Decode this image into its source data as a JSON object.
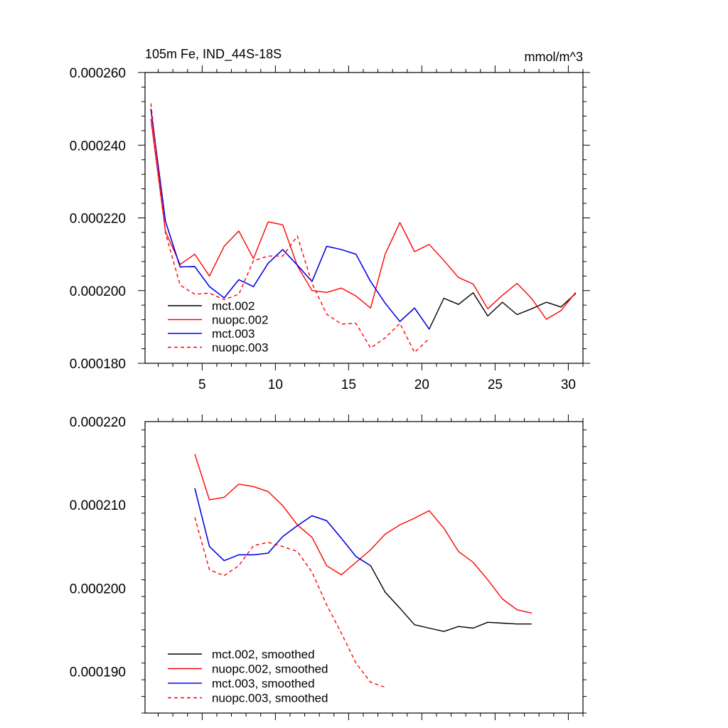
{
  "chart_data": [
    {
      "type": "line",
      "title_left": "105m Fe, IND_44S-18S",
      "title_right": "mmol/m^3",
      "xlabel": "",
      "ylabel": "",
      "xlim": [
        1.1,
        31.0
      ],
      "ylim": [
        0.00018,
        0.00026
      ],
      "xticks": [
        5,
        10,
        15,
        20,
        25,
        30
      ],
      "xtick_labels": [
        "5",
        "10",
        "15",
        "20",
        "25",
        "30"
      ],
      "yticks": [
        0.00018,
        0.0002,
        0.00022,
        0.00024,
        0.00026
      ],
      "ytick_labels": [
        "0.000180",
        "0.000200",
        "0.000220",
        "0.000240",
        "0.000260"
      ],
      "legend_position": "bottom-left",
      "series": [
        {
          "name": "mct.002",
          "color": "#000000",
          "dash": "solid",
          "x": [
            1.5,
            2.5,
            3.5,
            4.5,
            5.5,
            6.5,
            7.5,
            8.5,
            9.5,
            10.5,
            11.5,
            12.5,
            13.5,
            14.5,
            15.5,
            16.5,
            17.5,
            18.5,
            19.5,
            20.5,
            21.5,
            22.5,
            23.5,
            24.5,
            25.5,
            26.5,
            27.5,
            28.5,
            29.5,
            30.5
          ],
          "y": [
            0.00025,
            0.000219,
            0.0002065,
            0.0002066,
            0.0002011,
            0.000198,
            0.000203,
            0.0002011,
            0.0002075,
            0.0002113,
            0.000207,
            0.0002025,
            0.0002122,
            0.0002113,
            0.00021,
            0.0002025,
            0.0001965,
            0.0001915,
            0.0001952,
            0.0001894,
            0.0001979,
            0.0001962,
            0.0001994,
            0.000193,
            0.0001968,
            0.0001934,
            0.000195,
            0.0001968,
            0.0001955,
            0.0001992
          ]
        },
        {
          "name": "nuopc.002",
          "color": "#ff0000",
          "dash": "solid",
          "x": [
            1.5,
            2.5,
            3.5,
            4.5,
            5.5,
            6.5,
            7.5,
            8.5,
            9.5,
            10.5,
            11.5,
            12.5,
            13.5,
            14.5,
            15.5,
            16.5,
            17.5,
            18.5,
            19.5,
            20.5,
            21.5,
            22.5,
            23.5,
            24.5,
            25.5,
            26.5,
            27.5,
            28.5,
            29.5,
            30.5
          ],
          "y": [
            0.0002472,
            0.0002162,
            0.0002072,
            0.00021,
            0.000204,
            0.0002122,
            0.0002164,
            0.0002088,
            0.0002189,
            0.0002181,
            0.0002068,
            0.0002,
            0.0001995,
            0.0002007,
            0.0001985,
            0.0001952,
            0.0002101,
            0.0002187,
            0.0002107,
            0.0002127,
            0.0002083,
            0.0002036,
            0.0002018,
            0.000195,
            0.0001987,
            0.000202,
            0.0001978,
            0.0001921,
            0.0001945,
            0.0001995
          ]
        },
        {
          "name": "mct.003",
          "color": "#0000ff",
          "dash": "solid",
          "x": [
            1.5,
            2.5,
            3.5,
            4.5,
            5.5,
            6.5,
            7.5,
            8.5,
            9.5,
            10.5,
            11.5,
            12.5,
            13.5,
            14.5,
            15.5,
            16.5,
            17.5,
            18.5,
            19.5,
            20.5
          ],
          "y": [
            0.00025,
            0.000219,
            0.0002065,
            0.0002066,
            0.0002011,
            0.000198,
            0.000203,
            0.0002011,
            0.0002075,
            0.0002113,
            0.000207,
            0.0002025,
            0.0002122,
            0.0002113,
            0.00021,
            0.0002025,
            0.0001965,
            0.0001915,
            0.0001952,
            0.0001894
          ]
        },
        {
          "name": "nuopc.003",
          "color": "#ff0000",
          "dash": "dashed",
          "x": [
            1.5,
            2.5,
            3.5,
            4.5,
            5.5,
            6.5,
            7.5,
            8.5,
            9.5,
            10.5,
            11.5,
            12.5,
            13.5,
            14.5,
            15.5,
            16.5,
            17.5,
            18.5,
            19.5,
            20.5
          ],
          "y": [
            0.0002515,
            0.0002158,
            0.0002015,
            0.000199,
            0.0001993,
            0.0001975,
            0.000199,
            0.0002082,
            0.0002095,
            0.0002095,
            0.000215,
            0.000202,
            0.0001935,
            0.0001908,
            0.000191,
            0.0001842,
            0.000187,
            0.000191,
            0.000183,
            0.0001868
          ]
        }
      ]
    },
    {
      "type": "line",
      "title_left": "",
      "title_right": "",
      "xlabel": "",
      "ylabel": "",
      "xlim": [
        1.1,
        31.0
      ],
      "ylim": [
        0.000185,
        0.00022
      ],
      "xticks": [
        5,
        10,
        15,
        20,
        25,
        30
      ],
      "xtick_labels": [],
      "yticks": [
        0.00019,
        0.0002,
        0.00021,
        0.00022
      ],
      "ytick_labels": [
        "0.000190",
        "0.000200",
        "0.000210",
        "0.000220"
      ],
      "legend_position": "bottom-left",
      "series": [
        {
          "name": "mct.002, smoothed",
          "color": "#000000",
          "dash": "solid",
          "x": [
            4.5,
            5.5,
            6.5,
            7.5,
            8.5,
            9.5,
            10.5,
            11.5,
            12.5,
            13.5,
            14.5,
            15.5,
            16.5,
            17.5,
            18.5,
            19.5,
            20.5,
            21.5,
            22.5,
            23.5,
            24.5,
            25.5,
            26.5,
            27.5
          ],
          "y": [
            0.000212,
            0.000205,
            0.0002033,
            0.000204,
            0.000204,
            0.0002042,
            0.0002062,
            0.0002075,
            0.0002087,
            0.0002081,
            0.000206,
            0.0002038,
            0.0002027,
            0.0001995,
            0.0001976,
            0.0001956,
            0.0001952,
            0.0001948,
            0.0001954,
            0.0001952,
            0.0001959,
            0.0001958,
            0.0001957,
            0.0001957
          ]
        },
        {
          "name": "nuopc.002, smoothed",
          "color": "#ff0000",
          "dash": "solid",
          "x": [
            4.5,
            5.5,
            6.5,
            7.5,
            8.5,
            9.5,
            10.5,
            11.5,
            12.5,
            13.5,
            14.5,
            15.5,
            16.5,
            17.5,
            18.5,
            19.5,
            20.5,
            21.5,
            22.5,
            23.5,
            24.5,
            25.5,
            26.5,
            27.5
          ],
          "y": [
            0.0002161,
            0.0002106,
            0.0002109,
            0.0002125,
            0.0002122,
            0.0002116,
            0.0002099,
            0.0002076,
            0.0002061,
            0.0002027,
            0.0002016,
            0.0002031,
            0.0002046,
            0.0002065,
            0.0002076,
            0.0002084,
            0.0002093,
            0.0002072,
            0.0002044,
            0.0002031,
            0.000201,
            0.0001987,
            0.0001974,
            0.000197
          ]
        },
        {
          "name": "mct.003, smoothed",
          "color": "#0000ff",
          "dash": "solid",
          "x": [
            4.5,
            5.5,
            6.5,
            7.5,
            8.5,
            9.5,
            10.5,
            11.5,
            12.5,
            13.5,
            14.5,
            15.5,
            16.5
          ],
          "y": [
            0.000212,
            0.000205,
            0.0002033,
            0.000204,
            0.000204,
            0.0002042,
            0.0002062,
            0.0002075,
            0.0002087,
            0.0002081,
            0.000206,
            0.0002038,
            0.0002027
          ]
        },
        {
          "name": "nuopc.003, smoothed",
          "color": "#ff0000",
          "dash": "dashed",
          "x": [
            4.5,
            5.5,
            6.5,
            7.5,
            8.5,
            9.5,
            10.5,
            11.5,
            12.5,
            13.5,
            14.5,
            15.5,
            16.5,
            17.5
          ],
          "y": [
            0.0002085,
            0.0002022,
            0.0002015,
            0.0002027,
            0.0002051,
            0.0002055,
            0.000205,
            0.0002044,
            0.0002019,
            0.000198,
            0.0001946,
            0.000191,
            0.0001887,
            0.0001881
          ]
        }
      ]
    }
  ]
}
